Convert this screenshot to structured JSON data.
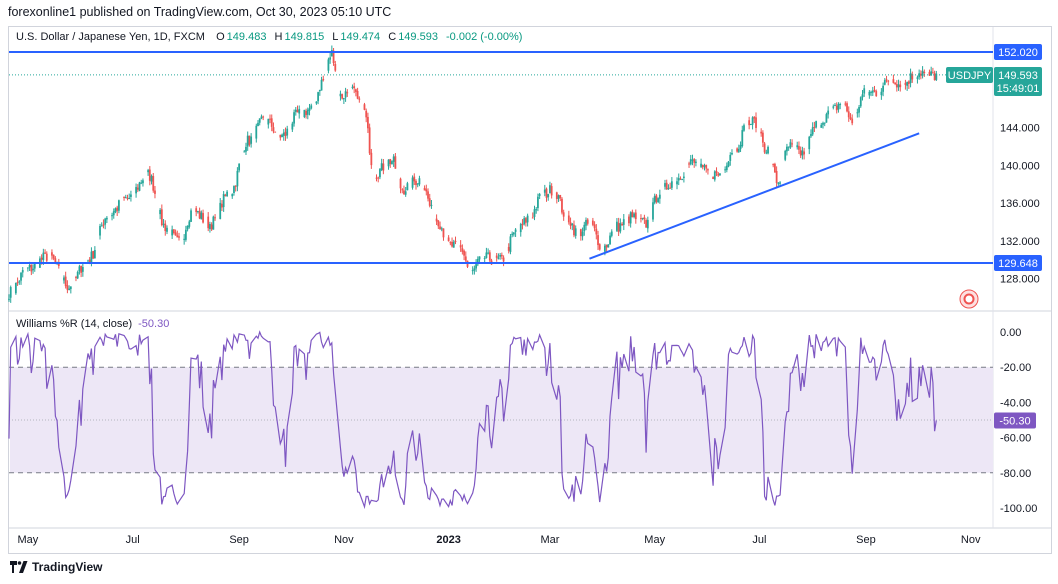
{
  "header": {
    "published_by": "forexonline1 published on TradingView.com, Oct 30, 2023 05:10 UTC"
  },
  "legend": {
    "symbol": "U.S. Dollar / Japanese Yen, 1D, FXCM",
    "o_label": "O",
    "o_value": "149.483",
    "h_label": "H",
    "h_value": "149.815",
    "l_label": "L",
    "l_value": "149.474",
    "c_label": "C",
    "c_value": "149.593",
    "change": "-0.002 (-0.00%)"
  },
  "indicator": {
    "name": "Williams %R (14, close)",
    "value": "-50.30"
  },
  "price_axis": {
    "ticks": [
      {
        "label": "144.000",
        "value": 144
      },
      {
        "label": "140.000",
        "value": 140
      },
      {
        "label": "136.000",
        "value": 136
      },
      {
        "label": "132.000",
        "value": 132
      },
      {
        "label": "128.000",
        "value": 128
      }
    ],
    "badges": [
      {
        "label": "152.020",
        "value": 152.02,
        "color": "#2962ff"
      },
      {
        "label": "129.648",
        "value": 129.648,
        "color": "#2962ff"
      }
    ],
    "symbol_badge": {
      "symbol": "USDJPY",
      "price": "149.593",
      "countdown": "15:49:01",
      "color": "#26a69a"
    }
  },
  "wr_axis": {
    "ticks": [
      {
        "label": "0.00",
        "value": 0
      },
      {
        "label": "-20.00",
        "value": -20
      },
      {
        "label": "-40.00",
        "value": -40
      },
      {
        "label": "-60.00",
        "value": -60
      },
      {
        "label": "-80.00",
        "value": -80
      },
      {
        "label": "-100.00",
        "value": -100
      }
    ],
    "badge": {
      "label": "-50.30",
      "value": -50.3,
      "color": "#7e57c2"
    }
  },
  "time_axis": {
    "labels": [
      {
        "label": "May",
        "day": 0
      },
      {
        "label": "Jul",
        "day": 61
      },
      {
        "label": "Sep",
        "day": 123
      },
      {
        "label": "Nov",
        "day": 184
      },
      {
        "label": "2023",
        "day": 245,
        "bold": true
      },
      {
        "label": "Mar",
        "day": 304
      },
      {
        "label": "May",
        "day": 365
      },
      {
        "label": "Jul",
        "day": 426
      },
      {
        "label": "Sep",
        "day": 488
      },
      {
        "label": "Nov",
        "day": 549
      }
    ]
  },
  "footer": {
    "brand": "TradingView"
  },
  "colors": {
    "up": "#26a69a",
    "down": "#ef5350",
    "trendline": "#2962ff",
    "wr_line": "#7e57c2",
    "wr_band": "#ede7f6",
    "grid": "#f0f3fa"
  },
  "chart_data": {
    "type": "candlestick",
    "title": "U.S. Dollar / Japanese Yen, 1D, FXCM",
    "x_start": "2022-05-01",
    "y_range": [
      126,
      153
    ],
    "horizontal_lines": [
      152.02,
      129.648
    ],
    "trendline": [
      {
        "date": "2023-03-24",
        "price": 130.1
      },
      {
        "date": "2023-10-02",
        "price": 143.4
      }
    ],
    "anchors": [
      [
        -11,
        126.5
      ],
      [
        0,
        129.0
      ],
      [
        12,
        130.4
      ],
      [
        24,
        127.2
      ],
      [
        35,
        130.0
      ],
      [
        47,
        134.8
      ],
      [
        58,
        136.5
      ],
      [
        70,
        139.0
      ],
      [
        80,
        133.5
      ],
      [
        88,
        131.8
      ],
      [
        96,
        135.2
      ],
      [
        106,
        133.8
      ],
      [
        118,
        137.2
      ],
      [
        128,
        142.6
      ],
      [
        138,
        144.8
      ],
      [
        148,
        143.1
      ],
      [
        158,
        145.5
      ],
      [
        165,
        146.0
      ],
      [
        172,
        149.0
      ],
      [
        177,
        151.9
      ],
      [
        182,
        147.3
      ],
      [
        188,
        148.0
      ],
      [
        195,
        146.1
      ],
      [
        202,
        139.2
      ],
      [
        212,
        140.5
      ],
      [
        218,
        137.5
      ],
      [
        228,
        138.5
      ],
      [
        238,
        134.3
      ],
      [
        246,
        131.5
      ],
      [
        252,
        131.2
      ],
      [
        258,
        128.6
      ],
      [
        265,
        130.2
      ],
      [
        275,
        129.9
      ],
      [
        285,
        133.0
      ],
      [
        292,
        134.5
      ],
      [
        300,
        136.9
      ],
      [
        306,
        137.5
      ],
      [
        314,
        134.5
      ],
      [
        320,
        132.8
      ],
      [
        327,
        133.8
      ],
      [
        335,
        131.3
      ],
      [
        343,
        133.5
      ],
      [
        352,
        134.5
      ],
      [
        360,
        133.8
      ],
      [
        368,
        137.2
      ],
      [
        377,
        138.5
      ],
      [
        387,
        140.3
      ],
      [
        394,
        139.4
      ],
      [
        402,
        139.0
      ],
      [
        411,
        141.6
      ],
      [
        420,
        144.5
      ],
      [
        424,
        144.6
      ],
      [
        430,
        141.8
      ],
      [
        437,
        138.2
      ],
      [
        443,
        142.0
      ],
      [
        451,
        141.3
      ],
      [
        460,
        144.4
      ],
      [
        466,
        145.4
      ],
      [
        474,
        146.6
      ],
      [
        480,
        144.8
      ],
      [
        487,
        147.6
      ],
      [
        495,
        147.8
      ],
      [
        503,
        149.3
      ],
      [
        509,
        148.4
      ],
      [
        515,
        149.4
      ],
      [
        520,
        149.9
      ],
      [
        526,
        149.5
      ],
      [
        531,
        149.6
      ]
    ],
    "williams_r": {
      "name": "Williams %R (14, close)",
      "period": 14,
      "levels": [
        -20,
        -80
      ],
      "range": [
        -100,
        0
      ],
      "last": -50.3
    }
  }
}
